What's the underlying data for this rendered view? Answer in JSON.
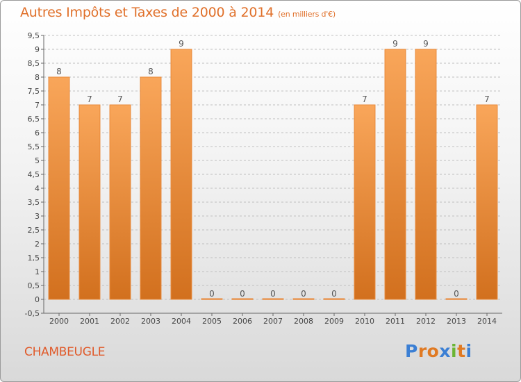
{
  "title": "Autres Impôts et Taxes de 2000 à 2014",
  "unit_label": "(en milliers d'€)",
  "commune": "CHAMBEUGLE",
  "logo": {
    "text": "Proxiti",
    "letters": [
      "P",
      "r",
      "o",
      "x",
      "i",
      "t",
      "i"
    ],
    "colors": [
      "#3b7fd4",
      "#e07a23",
      "#e07a23",
      "#3b7fd4",
      "#6bb534",
      "#e07a23",
      "#3b7fd4"
    ]
  },
  "colors": {
    "title": "#e0702a",
    "bar_light": "#f9a65a",
    "bar_dark": "#d2701e",
    "axis": "#666666",
    "grid": "#bfbfbf"
  },
  "chart_data": {
    "type": "bar",
    "title": "Autres Impôts et Taxes de 2000 à 2014",
    "subtitle": "(en milliers d'€)",
    "categories": [
      "2000",
      "2001",
      "2002",
      "2003",
      "2004",
      "2005",
      "2006",
      "2007",
      "2008",
      "2009",
      "2010",
      "2011",
      "2012",
      "2013",
      "2014"
    ],
    "values": [
      8,
      7,
      7,
      8,
      9,
      0,
      0,
      0,
      0,
      0,
      7,
      9,
      9,
      0,
      7
    ],
    "data_labels": [
      "8",
      "7",
      "7",
      "8",
      "9",
      "0",
      "0",
      "0",
      "0",
      "0",
      "7",
      "9",
      "9",
      "0",
      "7"
    ],
    "ylim": [
      -0.5,
      9.5
    ],
    "yticks": [
      "-0,5",
      "0",
      "0,5",
      "1",
      "1,5",
      "2",
      "2,5",
      "3",
      "3,5",
      "4",
      "4,5",
      "5",
      "5,5",
      "6",
      "6,5",
      "7",
      "7,5",
      "8",
      "8,5",
      "9",
      "9,5"
    ],
    "ytick_values": [
      -0.5,
      0,
      0.5,
      1,
      1.5,
      2,
      2.5,
      3,
      3.5,
      4,
      4.5,
      5,
      5.5,
      6,
      6.5,
      7,
      7.5,
      8,
      8.5,
      9,
      9.5
    ],
    "grid": "dashed horizontal",
    "legend": "none"
  }
}
